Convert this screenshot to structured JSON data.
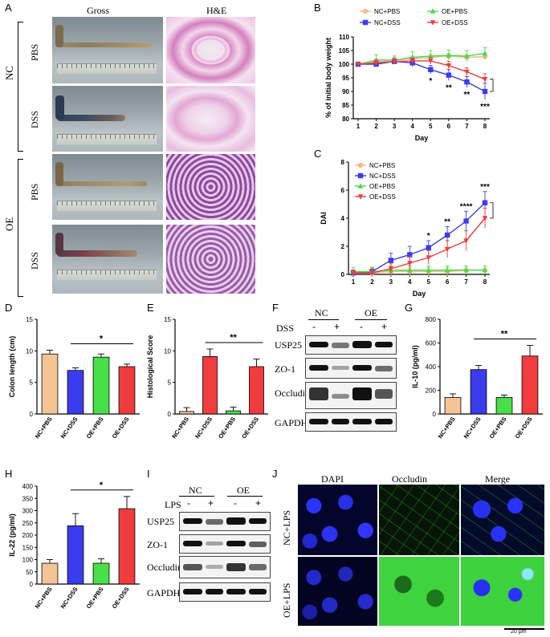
{
  "panel_letters": [
    "A",
    "B",
    "C",
    "D",
    "E",
    "F",
    "G",
    "H",
    "I",
    "J"
  ],
  "panelA": {
    "col_headers": [
      "Gross",
      "H&E"
    ],
    "group_labels": [
      "NC",
      "OE"
    ],
    "row_labels": [
      "PBS",
      "DSS",
      "PBS",
      "DSS"
    ]
  },
  "colors": {
    "nc_pbs": "#f5c494",
    "nc_dss": "#3b3bf0",
    "oe_pbs": "#48e048",
    "oe_dss": "#f03c3c",
    "dss_bar_nc": "#3b3bf0"
  },
  "chart_data": [
    {
      "id": "B",
      "type": "line",
      "xlabel": "Day",
      "ylabel": "% of initial body weight",
      "x": [
        1,
        2,
        3,
        4,
        5,
        6,
        7,
        8
      ],
      "ylim": [
        80,
        110
      ],
      "yticks": [
        80,
        85,
        90,
        95,
        100,
        105,
        110
      ],
      "legend": "top",
      "legend_layout": [
        "NC+PBS",
        "OE+PBS",
        "NC+DSS",
        "OE+DSS"
      ],
      "series": [
        {
          "name": "NC+PBS",
          "color": "#f5b98a",
          "marker": "circle",
          "values": [
            100,
            101,
            101.5,
            102,
            102.5,
            103,
            102.5,
            102.8
          ],
          "err": [
            0.5,
            1,
            1,
            1,
            1.2,
            1,
            1,
            1
          ]
        },
        {
          "name": "OE+PBS",
          "color": "#4cd94c",
          "marker": "triangle",
          "values": [
            100,
            101.5,
            101.5,
            102.5,
            103,
            103.2,
            103,
            104
          ],
          "err": [
            0.5,
            2,
            1.5,
            2,
            2,
            2,
            2,
            2
          ]
        },
        {
          "name": "NC+DSS",
          "color": "#3b3bf0",
          "marker": "square",
          "values": [
            100,
            100,
            101,
            100.5,
            98,
            96,
            93.5,
            90
          ],
          "err": [
            0.5,
            1,
            1,
            1.5,
            1.5,
            2,
            2,
            3
          ]
        },
        {
          "name": "OE+DSS",
          "color": "#f03c3c",
          "marker": "triangle-down",
          "values": [
            100,
            100.5,
            101,
            101.2,
            101.2,
            99.5,
            97.2,
            94.5
          ],
          "err": [
            0.5,
            1,
            1,
            1,
            1.2,
            1.5,
            1.5,
            2
          ]
        }
      ],
      "annotations": [
        {
          "x": 5,
          "label": "*"
        },
        {
          "x": 6,
          "label": "**"
        },
        {
          "x": 7,
          "label": "**"
        },
        {
          "x": 8,
          "label": "***"
        }
      ]
    },
    {
      "id": "C",
      "type": "line",
      "xlabel": "Day",
      "ylabel": "DAI",
      "x": [
        1,
        2,
        3,
        4,
        5,
        6,
        7,
        8
      ],
      "ylim": [
        0,
        8
      ],
      "yticks": [
        0,
        2,
        4,
        6,
        8
      ],
      "legend": "top-left",
      "series": [
        {
          "name": "NC+PBS",
          "color": "#f5b98a",
          "marker": "circle",
          "values": [
            0.1,
            0.1,
            0.2,
            0.2,
            0.2,
            0.2,
            0.3,
            0.3
          ],
          "err": [
            0.2,
            0.3,
            0.3,
            0.3,
            0.3,
            0.3,
            0.3,
            0.3
          ]
        },
        {
          "name": "NC+DSS",
          "color": "#3b3bf0",
          "marker": "square",
          "values": [
            0.1,
            0.2,
            1.0,
            1.4,
            1.9,
            2.8,
            3.8,
            5.1
          ],
          "err": [
            0.2,
            0.3,
            0.5,
            0.6,
            0.5,
            0.6,
            0.7,
            0.8
          ]
        },
        {
          "name": "OE+PBS",
          "color": "#4cd94c",
          "marker": "triangle",
          "values": [
            0.2,
            0.2,
            0.3,
            0.3,
            0.3,
            0.3,
            0.3,
            0.3
          ],
          "err": [
            0.3,
            0.3,
            0.3,
            0.3,
            0.3,
            0.3,
            0.3,
            0.3
          ]
        },
        {
          "name": "OE+DSS",
          "color": "#f03c3c",
          "marker": "triangle-down",
          "values": [
            0.1,
            0.1,
            0.4,
            0.8,
            1.2,
            1.8,
            2.4,
            4.0
          ],
          "err": [
            0.2,
            0.3,
            0.4,
            0.5,
            0.5,
            0.6,
            0.7,
            0.7
          ]
        }
      ],
      "annotations": [
        {
          "x": 5,
          "label": "*"
        },
        {
          "x": 6,
          "label": "**"
        },
        {
          "x": 7,
          "label": "****"
        },
        {
          "x": 8,
          "label": "***"
        }
      ]
    },
    {
      "id": "D",
      "type": "bar",
      "ylabel": "Colon length (cm)",
      "categories": [
        "NC+PBS",
        "NC+DSS",
        "OE+PBS",
        "OE+DSS"
      ],
      "values": [
        9.5,
        6.9,
        9.0,
        7.5
      ],
      "err": [
        0.6,
        0.4,
        0.5,
        0.4
      ],
      "colors": [
        "#f5c494",
        "#3b3bf0",
        "#48e048",
        "#f03c3c"
      ],
      "ylim": [
        0,
        15
      ],
      "yticks": [
        0,
        5,
        10,
        15
      ],
      "sig": {
        "from": 1,
        "to": 3,
        "label": "*"
      }
    },
    {
      "id": "E",
      "type": "bar",
      "ylabel": "Histological Score",
      "categories": [
        "NC+PBS",
        "NC+DSS",
        "OE+PBS",
        "OE+DSS"
      ],
      "values": [
        0.4,
        9.1,
        0.5,
        7.5
      ],
      "err": [
        0.6,
        1.2,
        0.6,
        1.2
      ],
      "colors": [
        "#f5c494",
        "#f03c3c",
        "#48e048",
        "#f03c3c"
      ],
      "ylim": [
        0,
        15
      ],
      "yticks": [
        0,
        5,
        10,
        15
      ],
      "sig": {
        "from": 1,
        "to": 3,
        "label": "**"
      }
    },
    {
      "id": "G",
      "type": "bar",
      "ylabel": "IL-10 (pg/ml)",
      "categories": [
        "NC+PBS",
        "NC+DSS",
        "OE+PBS",
        "OE+DSS"
      ],
      "values": [
        140,
        375,
        140,
        490
      ],
      "err": [
        30,
        35,
        20,
        90
      ],
      "colors": [
        "#f5c494",
        "#3b3bf0",
        "#48e048",
        "#f03c3c"
      ],
      "ylim": [
        0,
        800
      ],
      "yticks": [
        0,
        200,
        400,
        600,
        800
      ],
      "sig": {
        "from": 1,
        "to": 3,
        "label": "**"
      }
    },
    {
      "id": "H",
      "type": "bar",
      "ylabel": "IL-22 (pg/ml)",
      "categories": [
        "NC+PBS",
        "NC+DSS",
        "OE+PBS",
        "OE+DSS"
      ],
      "values": [
        85,
        238,
        85,
        308
      ],
      "err": [
        15,
        50,
        18,
        50
      ],
      "colors": [
        "#f5c494",
        "#3b3bf0",
        "#48e048",
        "#f03c3c"
      ],
      "ylim": [
        0,
        400
      ],
      "yticks": [
        0,
        50,
        100,
        150,
        200,
        250,
        300,
        350,
        400
      ],
      "sig": {
        "from": 1,
        "to": 3,
        "label": "*"
      }
    }
  ],
  "panelF": {
    "groups": [
      "NC",
      "OE"
    ],
    "treatment_label": "DSS",
    "signs": [
      "-",
      "+",
      "-",
      "+"
    ],
    "proteins": [
      "USP25",
      "ZO-1",
      "Occludin",
      "GAPDH"
    ]
  },
  "panelI": {
    "groups": [
      "NC",
      "OE"
    ],
    "treatment_label": "LPS",
    "signs": [
      "-",
      "+",
      "-",
      "+"
    ],
    "proteins": [
      "USP25",
      "ZO-1",
      "Occludin",
      "GAPDH"
    ]
  },
  "panelJ": {
    "col_headers": [
      "DAPI",
      "Occludin",
      "Merge"
    ],
    "row_labels": [
      "NC+LPS",
      "OE+LPS"
    ],
    "scale_bar": "20 μm"
  }
}
